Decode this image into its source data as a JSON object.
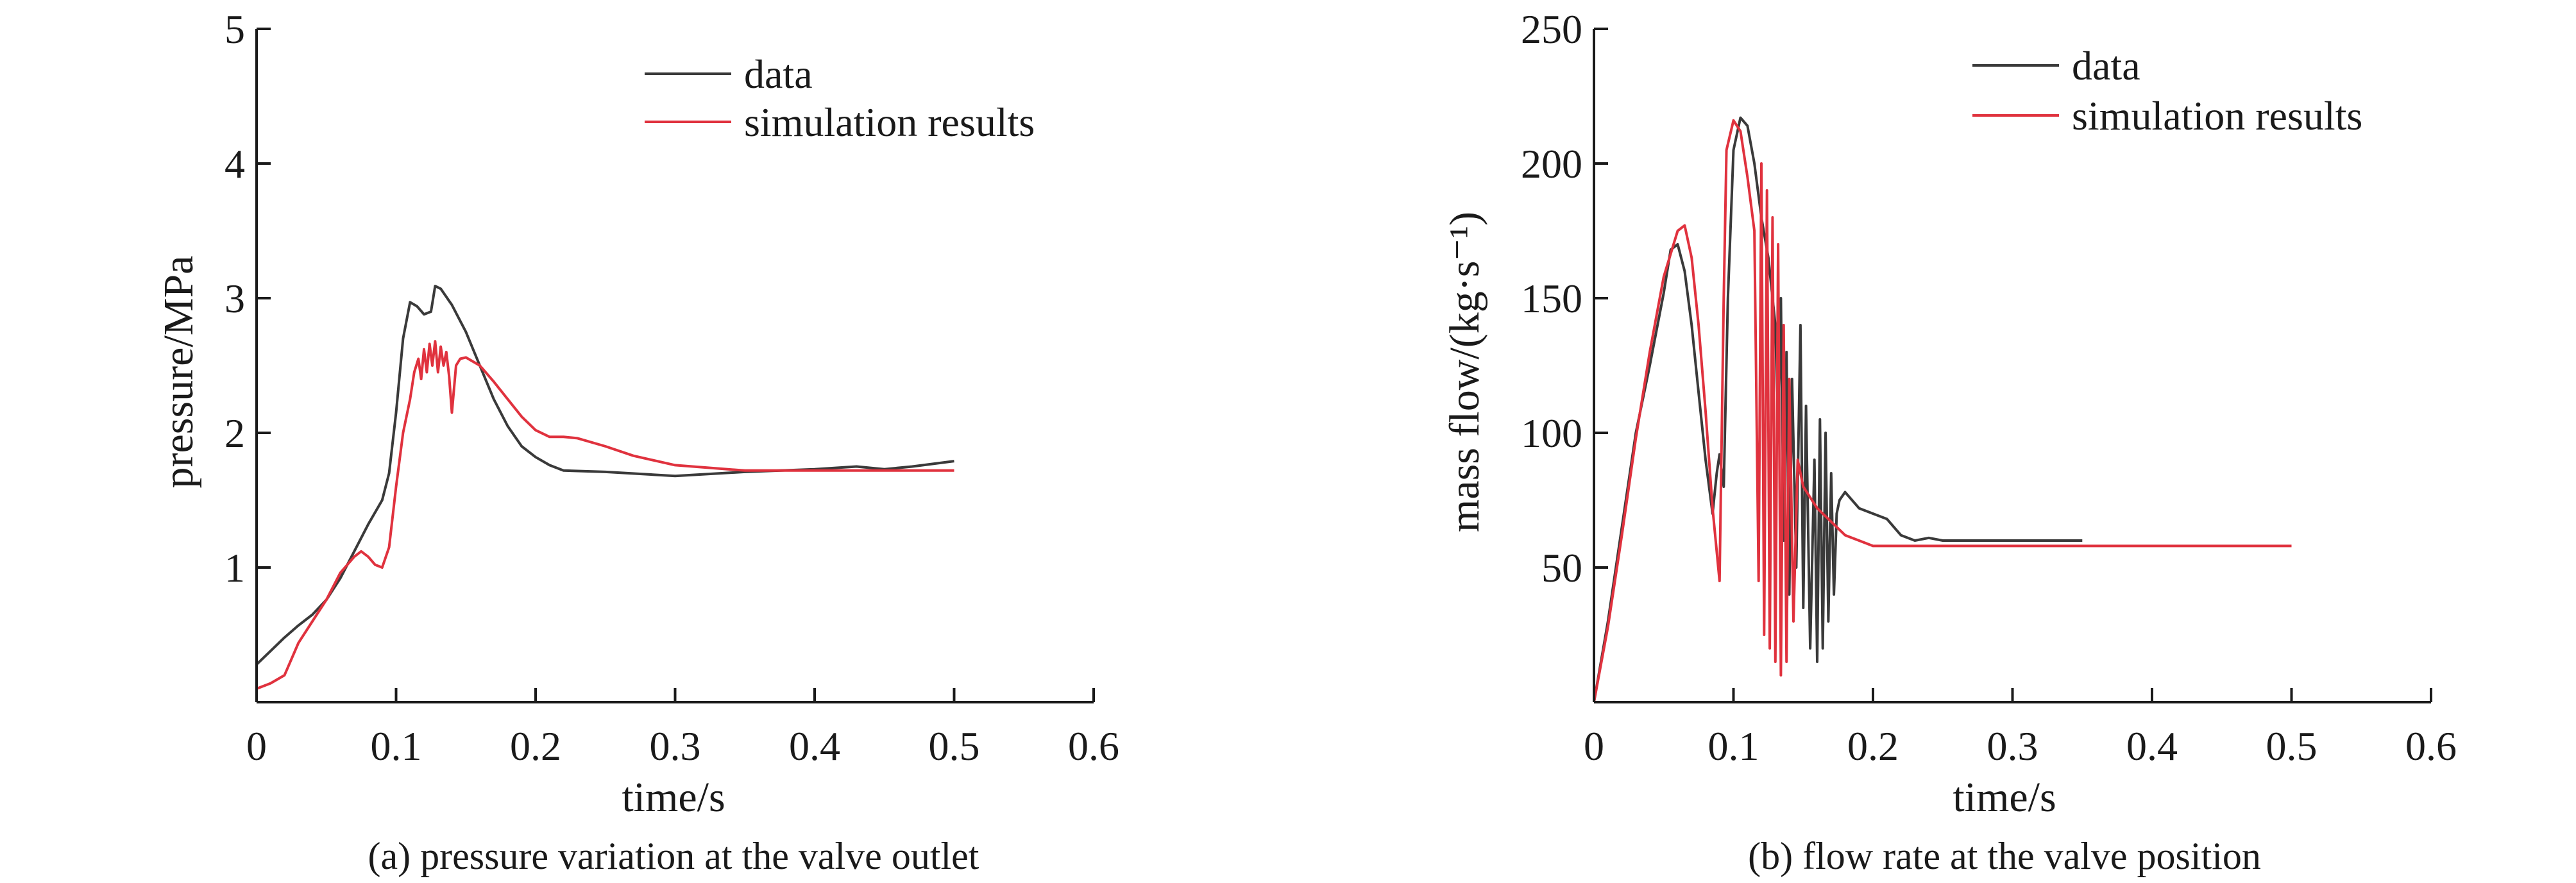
{
  "colors": {
    "data": "#3a3a3a",
    "simulation": "#e0323e",
    "axis": "#1a1a1a"
  },
  "chart_data": [
    {
      "type": "line",
      "caption": "(a) pressure variation at the valve outlet",
      "xlabel": "time/s",
      "ylabel": "pressure/MPa",
      "xlim": [
        0,
        0.6
      ],
      "ylim": [
        0,
        5
      ],
      "xticks": [
        "0",
        "0.1",
        "0.2",
        "0.3",
        "0.4",
        "0.5",
        "0.6"
      ],
      "yticks": [
        "1",
        "2",
        "3",
        "4",
        "5"
      ],
      "legend_position": "top-right",
      "series": [
        {
          "name": "data",
          "points": [
            [
              0,
              0.28
            ],
            [
              0.01,
              0.38
            ],
            [
              0.02,
              0.48
            ],
            [
              0.03,
              0.57
            ],
            [
              0.04,
              0.65
            ],
            [
              0.05,
              0.76
            ],
            [
              0.06,
              0.92
            ],
            [
              0.07,
              1.12
            ],
            [
              0.08,
              1.32
            ],
            [
              0.09,
              1.5
            ],
            [
              0.095,
              1.7
            ],
            [
              0.1,
              2.15
            ],
            [
              0.105,
              2.7
            ],
            [
              0.11,
              2.97
            ],
            [
              0.115,
              2.94
            ],
            [
              0.12,
              2.88
            ],
            [
              0.125,
              2.9
            ],
            [
              0.128,
              3.09
            ],
            [
              0.132,
              3.07
            ],
            [
              0.14,
              2.95
            ],
            [
              0.15,
              2.75
            ],
            [
              0.16,
              2.5
            ],
            [
              0.17,
              2.25
            ],
            [
              0.18,
              2.05
            ],
            [
              0.19,
              1.9
            ],
            [
              0.2,
              1.82
            ],
            [
              0.21,
              1.76
            ],
            [
              0.22,
              1.72
            ],
            [
              0.25,
              1.71
            ],
            [
              0.3,
              1.68
            ],
            [
              0.35,
              1.71
            ],
            [
              0.4,
              1.73
            ],
            [
              0.43,
              1.75
            ],
            [
              0.45,
              1.73
            ],
            [
              0.47,
              1.75
            ],
            [
              0.5,
              1.79
            ]
          ]
        },
        {
          "name": "simulation results",
          "points": [
            [
              0,
              0.1
            ],
            [
              0.01,
              0.14
            ],
            [
              0.02,
              0.2
            ],
            [
              0.03,
              0.44
            ],
            [
              0.04,
              0.6
            ],
            [
              0.05,
              0.76
            ],
            [
              0.06,
              0.96
            ],
            [
              0.07,
              1.08
            ],
            [
              0.075,
              1.12
            ],
            [
              0.08,
              1.08
            ],
            [
              0.085,
              1.02
            ],
            [
              0.09,
              1.0
            ],
            [
              0.095,
              1.15
            ],
            [
              0.1,
              1.6
            ],
            [
              0.105,
              2.0
            ],
            [
              0.11,
              2.25
            ],
            [
              0.113,
              2.45
            ],
            [
              0.116,
              2.55
            ],
            [
              0.118,
              2.4
            ],
            [
              0.12,
              2.62
            ],
            [
              0.122,
              2.45
            ],
            [
              0.124,
              2.66
            ],
            [
              0.126,
              2.5
            ],
            [
              0.128,
              2.68
            ],
            [
              0.13,
              2.45
            ],
            [
              0.132,
              2.64
            ],
            [
              0.134,
              2.5
            ],
            [
              0.136,
              2.6
            ],
            [
              0.138,
              2.42
            ],
            [
              0.14,
              2.15
            ],
            [
              0.143,
              2.5
            ],
            [
              0.146,
              2.55
            ],
            [
              0.15,
              2.56
            ],
            [
              0.16,
              2.5
            ],
            [
              0.17,
              2.38
            ],
            [
              0.18,
              2.25
            ],
            [
              0.19,
              2.12
            ],
            [
              0.2,
              2.02
            ],
            [
              0.21,
              1.97
            ],
            [
              0.22,
              1.97
            ],
            [
              0.23,
              1.96
            ],
            [
              0.25,
              1.9
            ],
            [
              0.27,
              1.83
            ],
            [
              0.3,
              1.76
            ],
            [
              0.35,
              1.72
            ],
            [
              0.4,
              1.72
            ],
            [
              0.45,
              1.72
            ],
            [
              0.5,
              1.72
            ]
          ]
        }
      ]
    },
    {
      "type": "line",
      "caption": "(b) flow rate at the valve position",
      "xlabel": "time/s",
      "ylabel": "mass flow/(kg·s⁻¹)",
      "xlim": [
        0,
        0.6
      ],
      "ylim": [
        0,
        250
      ],
      "xticks": [
        "0",
        "0.1",
        "0.2",
        "0.3",
        "0.4",
        "0.5",
        "0.6"
      ],
      "yticks": [
        "50",
        "100",
        "150",
        "200",
        "250"
      ],
      "legend_position": "top-right",
      "series": [
        {
          "name": "data",
          "points": [
            [
              0,
              0
            ],
            [
              0.01,
              30
            ],
            [
              0.02,
              65
            ],
            [
              0.03,
              100
            ],
            [
              0.04,
              125
            ],
            [
              0.05,
              152
            ],
            [
              0.055,
              168
            ],
            [
              0.06,
              170
            ],
            [
              0.065,
              160
            ],
            [
              0.07,
              140
            ],
            [
              0.075,
              115
            ],
            [
              0.08,
              90
            ],
            [
              0.085,
              70
            ],
            [
              0.088,
              85
            ],
            [
              0.09,
              92
            ],
            [
              0.093,
              80
            ],
            [
              0.096,
              150
            ],
            [
              0.1,
              205
            ],
            [
              0.105,
              217
            ],
            [
              0.11,
              214
            ],
            [
              0.115,
              200
            ],
            [
              0.12,
              180
            ],
            [
              0.125,
              165
            ],
            [
              0.13,
              140
            ],
            [
              0.132,
              100
            ],
            [
              0.134,
              150
            ],
            [
              0.136,
              60
            ],
            [
              0.138,
              130
            ],
            [
              0.14,
              40
            ],
            [
              0.142,
              120
            ],
            [
              0.145,
              50
            ],
            [
              0.148,
              140
            ],
            [
              0.15,
              35
            ],
            [
              0.152,
              110
            ],
            [
              0.155,
              20
            ],
            [
              0.158,
              90
            ],
            [
              0.16,
              15
            ],
            [
              0.162,
              105
            ],
            [
              0.164,
              20
            ],
            [
              0.166,
              100
            ],
            [
              0.168,
              30
            ],
            [
              0.17,
              85
            ],
            [
              0.172,
              40
            ],
            [
              0.174,
              70
            ],
            [
              0.176,
              75
            ],
            [
              0.18,
              78
            ],
            [
              0.19,
              72
            ],
            [
              0.2,
              70
            ],
            [
              0.21,
              68
            ],
            [
              0.22,
              62
            ],
            [
              0.23,
              60
            ],
            [
              0.24,
              61
            ],
            [
              0.25,
              60
            ],
            [
              0.3,
              60
            ],
            [
              0.35,
              60
            ]
          ]
        },
        {
          "name": "simulation results",
          "points": [
            [
              0,
              0
            ],
            [
              0.01,
              28
            ],
            [
              0.02,
              62
            ],
            [
              0.03,
              98
            ],
            [
              0.04,
              130
            ],
            [
              0.05,
              158
            ],
            [
              0.06,
              175
            ],
            [
              0.065,
              177
            ],
            [
              0.07,
              165
            ],
            [
              0.075,
              140
            ],
            [
              0.08,
              108
            ],
            [
              0.085,
              72
            ],
            [
              0.09,
              45
            ],
            [
              0.093,
              150
            ],
            [
              0.095,
              205
            ],
            [
              0.1,
              216
            ],
            [
              0.105,
              212
            ],
            [
              0.11,
              195
            ],
            [
              0.115,
              175
            ],
            [
              0.118,
              45
            ],
            [
              0.12,
              200
            ],
            [
              0.122,
              25
            ],
            [
              0.124,
              190
            ],
            [
              0.126,
              20
            ],
            [
              0.128,
              180
            ],
            [
              0.13,
              15
            ],
            [
              0.132,
              170
            ],
            [
              0.134,
              10
            ],
            [
              0.136,
              140
            ],
            [
              0.138,
              15
            ],
            [
              0.14,
              120
            ],
            [
              0.143,
              30
            ],
            [
              0.146,
              90
            ],
            [
              0.15,
              80
            ],
            [
              0.16,
              72
            ],
            [
              0.17,
              67
            ],
            [
              0.18,
              62
            ],
            [
              0.19,
              60
            ],
            [
              0.2,
              58
            ],
            [
              0.22,
              58
            ],
            [
              0.25,
              58
            ],
            [
              0.3,
              58
            ],
            [
              0.4,
              58
            ],
            [
              0.5,
              58
            ]
          ]
        }
      ]
    }
  ]
}
